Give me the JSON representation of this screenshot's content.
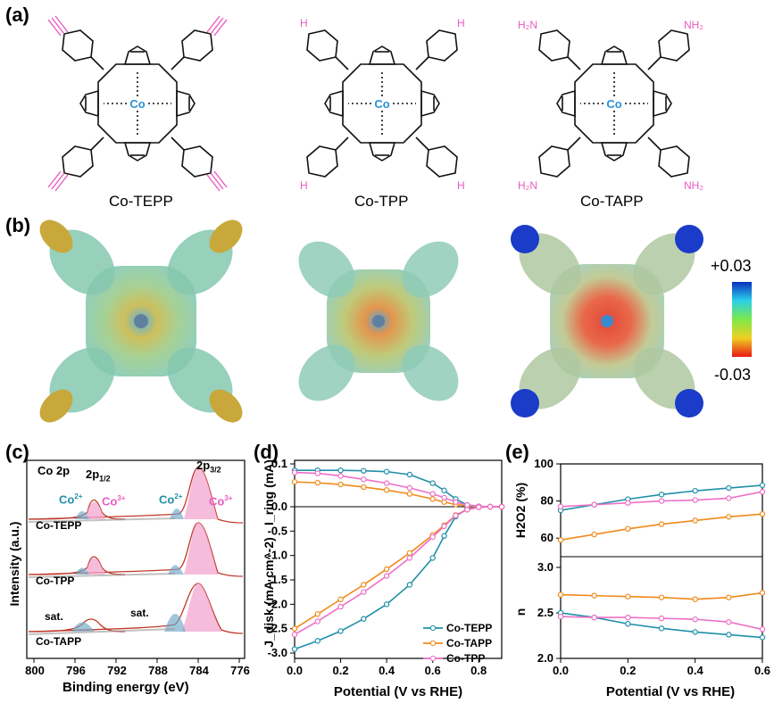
{
  "panel_labels": {
    "a": "(a)",
    "b": "(b)",
    "c": "(c)",
    "d": "(d)",
    "e": "(e)"
  },
  "molecules": [
    {
      "name": "Co-TEPP",
      "substituent": "",
      "metal": "Co"
    },
    {
      "name": "Co-TPP",
      "substituent": "H",
      "metal": "Co"
    },
    {
      "name": "Co-TAPP",
      "substituent": "H2N",
      "substituent_right": "NH2",
      "metal": "Co"
    }
  ],
  "colorbar": {
    "max_label": "+0.03",
    "min_label": "-0.03"
  },
  "colors": {
    "tepp": "#1f8fa8",
    "tapp": "#f08a1a",
    "tpp": "#ee6fc7",
    "co": "#2a8fd6",
    "pink": "#e85cc0"
  },
  "xps": {
    "header": "Co 2p",
    "peak_labels": {
      "p12": "2p",
      "p12_sub": "1/2",
      "p32": "2p",
      "p32_sub": "3/2"
    },
    "species": {
      "co2": "Co",
      "co2_sup": "2+",
      "co3": "Co",
      "co3_sup": "3+"
    },
    "sat_label": "sat.",
    "traces": [
      "Co-TEPP",
      "Co-TPP",
      "Co-TAPP"
    ],
    "xlabel": "Binding energy (eV)",
    "ylabel": "Intensity (a.u.)",
    "xticks": [
      "800",
      "796",
      "792",
      "788",
      "784",
      "780",
      "776"
    ]
  },
  "chart_data": [
    {
      "type": "line",
      "panel": "d",
      "xlabel": "Potential (V vs RHE)",
      "ylabel_top": "I_ring (mA)",
      "ylabel_bottom": "J_disk (mA cm^-2)",
      "xlim": [
        0.0,
        0.9
      ],
      "ring_ylim": [
        0,
        0.1
      ],
      "disk_ylim": [
        -3.0,
        0.0
      ],
      "xticks": [
        "0.0",
        "0.2",
        "0.4",
        "0.6",
        "0.8"
      ],
      "yticks": [
        "0.1",
        "0.0",
        "-0.5",
        "-1.0",
        "-1.5",
        "-2.0",
        "-2.5",
        "-3.0"
      ],
      "x": [
        0.0,
        0.1,
        0.2,
        0.3,
        0.4,
        0.5,
        0.6,
        0.65,
        0.7,
        0.75,
        0.8,
        0.85,
        0.9
      ],
      "series": [
        {
          "name": "Co-TEPP",
          "ring": [
            0.085,
            0.085,
            0.085,
            0.084,
            0.082,
            0.075,
            0.055,
            0.038,
            0.018,
            0.004,
            0.001,
            0.0,
            0.0
          ],
          "disk": [
            -2.92,
            -2.75,
            -2.55,
            -2.3,
            -2.0,
            -1.6,
            -1.05,
            -0.6,
            -0.2,
            -0.04,
            -0.01,
            0.0,
            0.0
          ]
        },
        {
          "name": "Co-TAPP",
          "ring": [
            0.058,
            0.056,
            0.052,
            0.046,
            0.039,
            0.03,
            0.018,
            0.011,
            0.005,
            0.002,
            0.0,
            0.0,
            0.0
          ],
          "disk": [
            -2.5,
            -2.2,
            -1.9,
            -1.6,
            -1.28,
            -0.95,
            -0.58,
            -0.38,
            -0.17,
            -0.06,
            -0.01,
            0.0,
            0.0
          ]
        },
        {
          "name": "Co-TPP",
          "ring": [
            0.08,
            0.078,
            0.072,
            0.064,
            0.055,
            0.044,
            0.03,
            0.021,
            0.011,
            0.004,
            0.001,
            0.0,
            0.0
          ],
          "disk": [
            -2.62,
            -2.35,
            -2.05,
            -1.75,
            -1.42,
            -1.05,
            -0.62,
            -0.4,
            -0.18,
            -0.06,
            -0.01,
            0.0,
            0.0
          ]
        }
      ]
    },
    {
      "type": "line",
      "panel": "e",
      "xlabel": "Potential (V vs RHE)",
      "ylabel_top": "H2O2 (%)",
      "ylabel_bottom": "n",
      "xlim": [
        0.0,
        0.6
      ],
      "h2o2_ylim": [
        50,
        100
      ],
      "n_ylim": [
        2.0,
        3.0
      ],
      "xticks": [
        "0.0",
        "0.2",
        "0.4",
        "0.6"
      ],
      "h2o2_yticks": [
        "100",
        "80",
        "60"
      ],
      "n_yticks": [
        "3.0",
        "2.5",
        "2.0"
      ],
      "x": [
        0.0,
        0.1,
        0.2,
        0.3,
        0.4,
        0.5,
        0.6
      ],
      "series": [
        {
          "name": "Co-TEPP",
          "h2o2": [
            75,
            78,
            81,
            83.5,
            85.5,
            87,
            88.5
          ],
          "n": [
            2.5,
            2.45,
            2.38,
            2.33,
            2.29,
            2.26,
            2.23
          ]
        },
        {
          "name": "Co-TAPP",
          "h2o2": [
            59,
            62,
            65,
            67.5,
            69.5,
            71.5,
            73
          ],
          "n": [
            2.7,
            2.69,
            2.68,
            2.67,
            2.65,
            2.67,
            2.72
          ]
        },
        {
          "name": "Co-TPP",
          "h2o2": [
            77,
            78,
            79,
            80,
            80.5,
            81.5,
            85
          ],
          "n": [
            2.46,
            2.45,
            2.45,
            2.44,
            2.43,
            2.4,
            2.32
          ]
        }
      ]
    }
  ]
}
